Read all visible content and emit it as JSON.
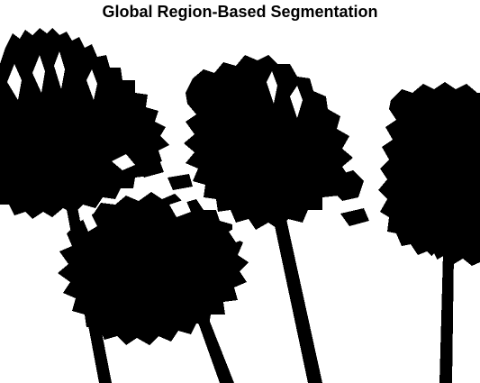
{
  "figure": {
    "title": "Global Region-Based Segmentation"
  },
  "segmentation_mask": {
    "foreground_color": "#000000",
    "background_color": "#ffffff",
    "content": "binary silhouette of gerbera daisy flowers with stems"
  }
}
